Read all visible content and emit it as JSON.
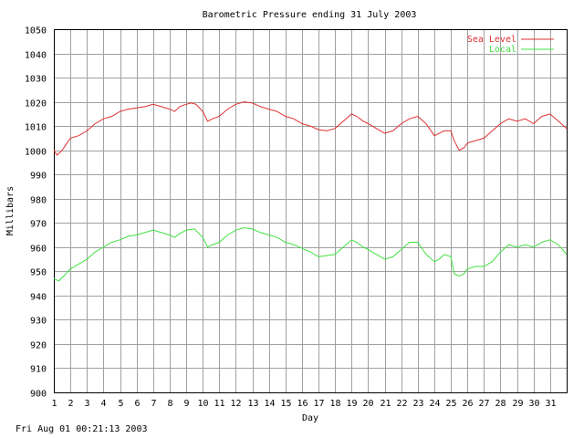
{
  "footer": {
    "timestamp": "Fri Aug 01 00:21:13 2003"
  },
  "chart_data": {
    "type": "line",
    "title": "Barometric Pressure ending 31 July 2003",
    "xlabel": "Day",
    "ylabel": "Millibars",
    "xlim": [
      1,
      32
    ],
    "ylim": [
      900,
      1050
    ],
    "grid": true,
    "legend_position": "top-right",
    "x_ticks": [
      "1",
      "2",
      "3",
      "4",
      "5",
      "6",
      "7",
      "8",
      "9",
      "10",
      "11",
      "12",
      "13",
      "14",
      "15",
      "16",
      "17",
      "18",
      "19",
      "20",
      "21",
      "22",
      "23",
      "24",
      "25",
      "26",
      "27",
      "28",
      "29",
      "30",
      "31"
    ],
    "y_ticks": [
      "900",
      "910",
      "920",
      "930",
      "940",
      "950",
      "960",
      "970",
      "980",
      "990",
      "1000",
      "1010",
      "1020",
      "1030",
      "1040",
      "1050"
    ],
    "series": [
      {
        "name": "Sea Level",
        "color": "#e03030",
        "x": [
          1,
          1.2,
          1.5,
          1.8,
          2,
          2.5,
          3,
          3.5,
          4,
          4.5,
          5,
          5.5,
          6,
          6.5,
          7,
          7.5,
          8,
          8.3,
          8.6,
          9,
          9.3,
          9.6,
          10,
          10.3,
          10.6,
          11,
          11.5,
          12,
          12.5,
          13,
          13.5,
          14,
          14.5,
          15,
          15.5,
          16,
          16.5,
          17,
          17.5,
          18,
          18.5,
          19,
          19.3,
          19.7,
          20,
          20.5,
          21,
          21.5,
          22,
          22.5,
          23,
          23.5,
          24,
          24.3,
          24.6,
          25,
          25.2,
          25.5,
          25.8,
          26,
          26.5,
          27,
          27.5,
          28,
          28.5,
          29,
          29.5,
          30,
          30.5,
          31,
          31.5,
          32
        ],
        "y": [
          1000,
          998,
          1000,
          1003,
          1005,
          1006,
          1008,
          1011,
          1013,
          1014,
          1016,
          1017,
          1017.5,
          1018,
          1019,
          1018,
          1017,
          1016,
          1018,
          1019,
          1019.5,
          1019,
          1016,
          1012,
          1013,
          1014,
          1017,
          1019,
          1020,
          1019.5,
          1018,
          1017,
          1016,
          1014,
          1013,
          1011,
          1010,
          1008.5,
          1008,
          1009,
          1012,
          1015,
          1014,
          1012,
          1011,
          1009,
          1007,
          1008,
          1011,
          1013,
          1014,
          1011,
          1006,
          1007,
          1008,
          1008,
          1004,
          1000,
          1001,
          1003,
          1004,
          1005,
          1008,
          1011,
          1013,
          1012,
          1013,
          1011,
          1014,
          1015,
          1012,
          1009
        ]
      },
      {
        "name": "Local",
        "color": "#40e040",
        "x": [
          1,
          1.3,
          1.6,
          2,
          2.5,
          3,
          3.5,
          4,
          4.5,
          5,
          5.5,
          6,
          6.5,
          7,
          7.5,
          8,
          8.3,
          8.6,
          9,
          9.5,
          10,
          10.3,
          10.6,
          11,
          11.5,
          12,
          12.5,
          13,
          13.5,
          14,
          14.5,
          15,
          15.5,
          16,
          16.5,
          17,
          17.5,
          18,
          18.5,
          19,
          19.3,
          19.7,
          20,
          20.5,
          21,
          21.5,
          22,
          22.5,
          23,
          23.5,
          24,
          24.3,
          24.6,
          25,
          25.2,
          25.5,
          25.8,
          26,
          26.5,
          27,
          27.5,
          28,
          28.5,
          29,
          29.5,
          30,
          30.5,
          31,
          31.5,
          32
        ],
        "y": [
          947,
          946,
          948,
          951,
          953,
          955,
          958,
          960,
          962,
          963,
          964.5,
          965,
          966,
          967,
          966,
          965,
          964,
          965.5,
          967,
          967.5,
          964,
          960,
          961,
          962,
          965,
          967,
          968,
          967.5,
          966,
          965,
          964,
          962,
          961,
          959.5,
          958,
          956,
          956.5,
          957,
          960,
          963,
          962,
          960,
          959,
          957,
          955,
          956,
          959,
          962,
          962,
          957,
          954,
          955,
          957,
          956,
          949,
          948,
          949,
          951,
          952,
          952,
          954,
          958,
          961,
          960,
          961,
          960,
          962,
          963,
          961,
          957
        ]
      }
    ]
  }
}
